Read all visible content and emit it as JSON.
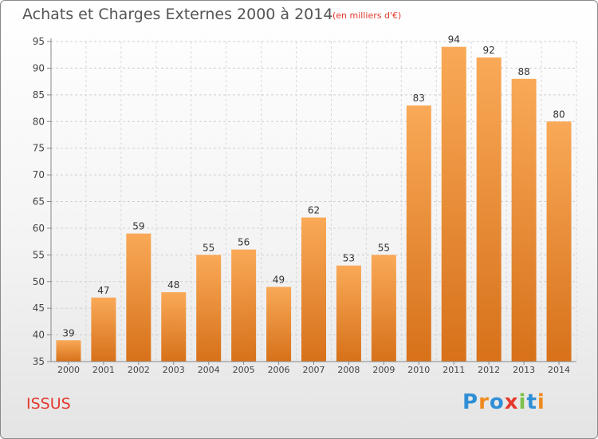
{
  "header": {
    "title": "Achats et Charges Externes 2000 à 2014",
    "subtitle": "(en milliers d'€)"
  },
  "footer": {
    "place": "ISSUS",
    "brand_letters": [
      "P",
      "r",
      "o",
      "x",
      "i",
      "t",
      "i"
    ],
    "brand_colors": [
      "#2f8fd6",
      "#f08a1d",
      "#2f8fd6",
      "#e5392d",
      "#7cc24a",
      "#2f8fd6",
      "#f08a1d"
    ]
  },
  "chart_data": {
    "type": "bar",
    "title": "Achats et Charges Externes 2000 à 2014",
    "subtitle": "(en milliers d'€)",
    "xlabel": "",
    "ylabel": "",
    "categories": [
      "2000",
      "2001",
      "2002",
      "2003",
      "2004",
      "2005",
      "2006",
      "2007",
      "2008",
      "2009",
      "2010",
      "2011",
      "2012",
      "2013",
      "2014"
    ],
    "values": [
      39,
      47,
      59,
      48,
      55,
      56,
      49,
      62,
      53,
      55,
      83,
      94,
      92,
      88,
      80
    ],
    "ylim": [
      35,
      95
    ],
    "yticks": [
      35,
      40,
      45,
      50,
      55,
      60,
      65,
      70,
      75,
      80,
      85,
      90,
      95
    ],
    "grid": true,
    "legend": "none",
    "bar_color_top": "#f9a957",
    "bar_color_bottom": "#d7711a",
    "label_color": "#333333"
  }
}
